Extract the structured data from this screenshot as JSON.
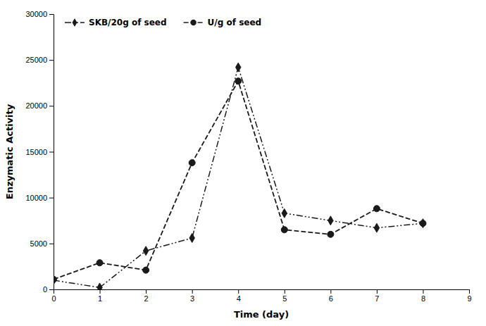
{
  "chart_data": {
    "type": "line",
    "x": [
      0,
      1,
      2,
      3,
      4,
      5,
      6,
      7,
      8
    ],
    "series": [
      {
        "name": "SKB/20g of seed",
        "color": "#1a1a1a",
        "marker": "diamond",
        "line_style": "dashdot",
        "values": [
          1000,
          200,
          4200,
          5600,
          24200,
          8300,
          7500,
          6700,
          7200
        ]
      },
      {
        "name": "U/g of seed",
        "color": "#1a1a1a",
        "marker": "circle",
        "line_style": "dashed",
        "values": [
          1100,
          2900,
          2100,
          13800,
          22700,
          6500,
          6000,
          8800,
          7200
        ]
      }
    ],
    "xlabel": "Time (day)",
    "ylabel": "Enzymatic Activity",
    "xlim": [
      0,
      9
    ],
    "ylim": [
      0,
      30000
    ],
    "xticks": [
      0,
      1,
      2,
      3,
      4,
      5,
      6,
      7,
      8,
      9
    ],
    "yticks": [
      0,
      5000,
      10000,
      15000,
      20000,
      25000,
      30000
    ],
    "grid": false,
    "legend": "upper left"
  }
}
